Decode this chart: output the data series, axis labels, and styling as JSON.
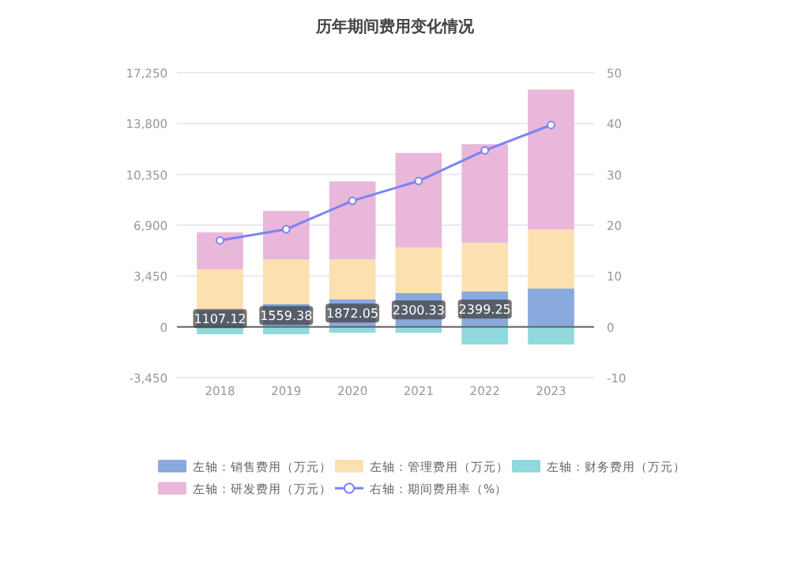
{
  "chart_data": {
    "type": "bar",
    "title": "历年期间费用变化情况",
    "categories": [
      "2018",
      "2019",
      "2020",
      "2021",
      "2022",
      "2023"
    ],
    "stacked": true,
    "series": [
      {
        "name": "左轴：销售费用（万元）",
        "color": "#8aa9dc",
        "values": [
          1107.12,
          1559.38,
          1872.05,
          2300.33,
          2399.25,
          2600
        ],
        "value_labels": [
          "1107.12",
          "1559.38",
          "1872.05",
          "2300.33",
          "2399.25",
          null
        ]
      },
      {
        "name": "左轴：管理费用（万元）",
        "color": "#fde0b0",
        "values": [
          2800,
          3000,
          2700,
          3100,
          3300,
          4000
        ]
      },
      {
        "name": "左轴：财务费用（万元）",
        "color": "#8fd9dd",
        "values": [
          -500,
          -500,
          -400,
          -400,
          -1200,
          -1200
        ]
      },
      {
        "name": "左轴：研发费用（万元）",
        "color": "#e8b7d9",
        "values": [
          2500,
          3300,
          5300,
          6400,
          6700,
          9500
        ]
      },
      {
        "name": "右轴：期间费用率（%）",
        "type": "line",
        "axis": "y2",
        "color": "#7b83f5",
        "marker": "circle",
        "values": [
          17.0,
          19.2,
          24.8,
          28.7,
          34.7,
          39.7
        ]
      }
    ],
    "ylim": [
      -3450,
      17250
    ],
    "yticks": [
      {
        "value": -3450,
        "label": "-3,450"
      },
      0,
      {
        "value": 3450,
        "label": "3,450"
      },
      {
        "value": 6900,
        "label": "6,900"
      },
      {
        "value": 10350,
        "label": "10,350"
      },
      {
        "value": 13800,
        "label": "13,800"
      },
      {
        "value": 17250,
        "label": "17,250"
      }
    ],
    "y2lim": [
      -10,
      50
    ],
    "y2ticks": [
      -10,
      0,
      10,
      20,
      30,
      40,
      50
    ],
    "grid": "y",
    "legend": "bottom"
  }
}
